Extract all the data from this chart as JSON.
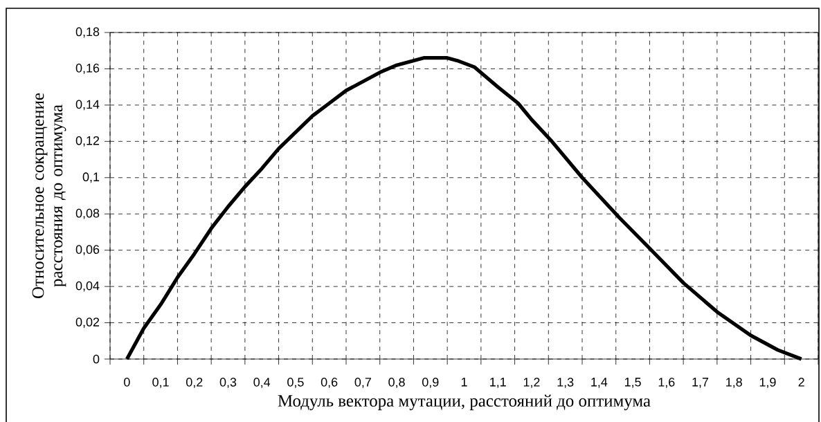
{
  "chart_data": {
    "type": "line",
    "xlabel": "Модуль вектора мутации, расстояний до оптимума",
    "ylabel": "Относительное сокращение расстояния до оптимума",
    "x": [
      0,
      0.05,
      0.1,
      0.15,
      0.2,
      0.25,
      0.3,
      0.35,
      0.4,
      0.45,
      0.5,
      0.55,
      0.6,
      0.65,
      0.7,
      0.75,
      0.8,
      0.88,
      0.95,
      0.98,
      1.03,
      1.1,
      1.16,
      1.2,
      1.26,
      1.35,
      1.46,
      1.55,
      1.65,
      1.75,
      1.85,
      1.93,
      2.0
    ],
    "series": [
      {
        "color": "#000000",
        "values": [
          0,
          0.017,
          0.03,
          0.045,
          0.058,
          0.072,
          0.084,
          0.095,
          0.105,
          0.116,
          0.125,
          0.134,
          0.141,
          0.148,
          0.153,
          0.158,
          0.162,
          0.166,
          0.166,
          0.1645,
          0.161,
          0.15,
          0.141,
          0.132,
          0.12,
          0.1,
          0.078,
          0.061,
          0.042,
          0.026,
          0.013,
          0.005,
          0
        ]
      }
    ],
    "xlim": [
      -0.05,
      2.05
    ],
    "xticks": [
      0,
      {
        "value": 0.1,
        "label": "0,1"
      },
      {
        "value": 0.2,
        "label": "0,2"
      },
      {
        "value": 0.3,
        "label": "0,3"
      },
      {
        "value": 0.4,
        "label": "0,4"
      },
      {
        "value": 0.5,
        "label": "0,5"
      },
      {
        "value": 0.6,
        "label": "0,6"
      },
      {
        "value": 0.7,
        "label": "0,7"
      },
      {
        "value": 0.8,
        "label": "0,8"
      },
      {
        "value": 0.9,
        "label": "0,9"
      },
      1,
      {
        "value": 1.1,
        "label": "1,1"
      },
      {
        "value": 1.2,
        "label": "1,2"
      },
      {
        "value": 1.3,
        "label": "1,3"
      },
      {
        "value": 1.4,
        "label": "1,4"
      },
      {
        "value": 1.5,
        "label": "1,5"
      },
      {
        "value": 1.6,
        "label": "1,6"
      },
      {
        "value": 1.7,
        "label": "1,7"
      },
      {
        "value": 1.8,
        "label": "1,8"
      },
      {
        "value": 1.9,
        "label": "1,9"
      },
      2
    ],
    "ylim": [
      0,
      0.18
    ],
    "yticks": [
      0,
      {
        "value": 0.02,
        "label": "0,02"
      },
      {
        "value": 0.04,
        "label": "0,04"
      },
      {
        "value": 0.06,
        "label": "0,06"
      },
      {
        "value": 0.08,
        "label": "0,08"
      },
      {
        "value": 0.1,
        "label": "0,1"
      },
      {
        "value": 0.12,
        "label": "0,12"
      },
      {
        "value": 0.14,
        "label": "0,14"
      },
      {
        "value": 0.16,
        "label": "0,16"
      },
      {
        "value": 0.18,
        "label": "0,18"
      }
    ],
    "grid": true,
    "line_style": "solid"
  }
}
